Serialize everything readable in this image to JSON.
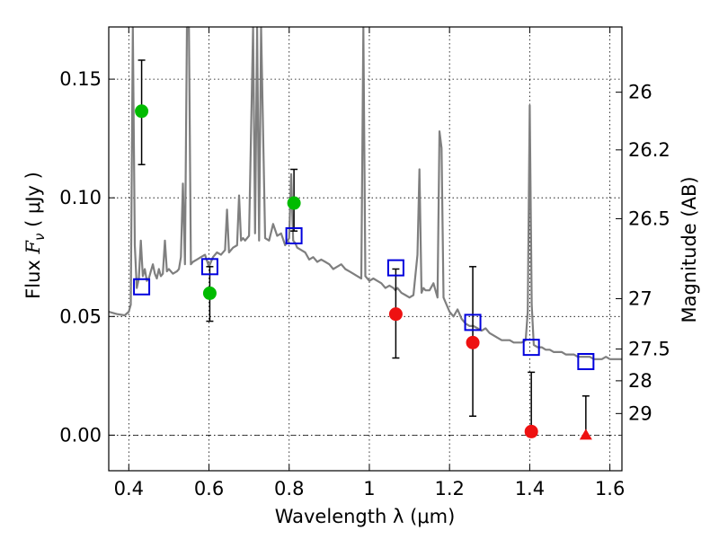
{
  "chart_data": {
    "type": "scatter",
    "xlabel": "Wavelength  λ (μm)",
    "ylabel": "Flux  F_ν  ( μJy )",
    "ylabel_parts": {
      "prefix": "Flux  ",
      "symbol": "F",
      "subscript": "ν",
      "suffix": "  ( μJy )"
    },
    "y2label": "Magnitude (AB)",
    "xlim": [
      0.35,
      1.63
    ],
    "ylim": [
      -0.015,
      0.172
    ],
    "x_ticks": [
      0.4,
      0.6,
      0.8,
      1.0,
      1.2,
      1.4,
      1.6
    ],
    "x_tick_labels": [
      "0.4",
      "0.6",
      "0.8",
      "1",
      "1.2",
      "1.4",
      "1.6"
    ],
    "y_ticks": [
      0.0,
      0.05,
      0.1,
      0.15
    ],
    "y_tick_labels": [
      "0.00",
      "0.05",
      "0.10",
      "0.15"
    ],
    "y2_ticks": [
      {
        "label": "26",
        "flux": 0.1445
      },
      {
        "label": "26.2",
        "flux": 0.1202
      },
      {
        "label": "26.5",
        "flux": 0.0912
      },
      {
        "label": "27",
        "flux": 0.0575
      },
      {
        "label": "27.5",
        "flux": 0.0363
      },
      {
        "label": "28",
        "flux": 0.0229
      },
      {
        "label": "29",
        "flux": 0.0091
      }
    ],
    "grid": true,
    "colors": {
      "green": "#00bb00",
      "red": "#ee1111",
      "model_box": "#0000dd",
      "spectrum": "#7f7f7f",
      "errorbar": "#000000"
    },
    "series": [
      {
        "name": "detections (green)",
        "marker": "circle",
        "color": "#00bb00",
        "x": [
          0.432,
          0.602,
          0.812
        ],
        "y": [
          0.1365,
          0.0598,
          0.0978
        ],
        "yerr_low": [
          0.0225,
          0.0118,
          0.0118
        ],
        "yerr_high": [
          0.0215,
          0.0112,
          0.0142
        ]
      },
      {
        "name": "detections (red)",
        "marker": "circle",
        "color": "#ee1111",
        "x": [
          1.066,
          1.258,
          1.404
        ],
        "y": [
          0.051,
          0.039,
          0.0015
        ],
        "yerr_low": [
          0.0185,
          0.031,
          0.0015
        ],
        "yerr_high": [
          0.019,
          0.032,
          0.025
        ]
      },
      {
        "name": "upper limit",
        "marker": "triangle",
        "color": "#ee1111",
        "x": [
          1.54
        ],
        "y": [
          0.0
        ],
        "yerr_low": [
          0.0
        ],
        "yerr_high": [
          0.0165
        ]
      },
      {
        "name": "model photometry",
        "marker": "open-square",
        "color": "#0000dd",
        "x": [
          0.432,
          0.602,
          0.812,
          1.066,
          1.258,
          1.404,
          1.54
        ],
        "y": [
          0.0625,
          0.071,
          0.084,
          0.0705,
          0.0475,
          0.037,
          0.031
        ]
      },
      {
        "name": "model spectrum",
        "marker": "line",
        "color": "#7f7f7f",
        "x": [
          0.35,
          0.37,
          0.39,
          0.4,
          0.405,
          0.41,
          0.415,
          0.42,
          0.425,
          0.43,
          0.435,
          0.44,
          0.445,
          0.45,
          0.455,
          0.46,
          0.465,
          0.47,
          0.475,
          0.48,
          0.485,
          0.49,
          0.495,
          0.5,
          0.51,
          0.52,
          0.525,
          0.53,
          0.535,
          0.54,
          0.545,
          0.55,
          0.555,
          0.56,
          0.57,
          0.58,
          0.59,
          0.6,
          0.61,
          0.62,
          0.63,
          0.64,
          0.645,
          0.65,
          0.66,
          0.67,
          0.675,
          0.68,
          0.685,
          0.69,
          0.7,
          0.71,
          0.715,
          0.72,
          0.725,
          0.73,
          0.74,
          0.75,
          0.76,
          0.77,
          0.78,
          0.79,
          0.8,
          0.805,
          0.81,
          0.815,
          0.82,
          0.83,
          0.84,
          0.85,
          0.86,
          0.87,
          0.88,
          0.89,
          0.9,
          0.91,
          0.92,
          0.93,
          0.94,
          0.95,
          0.96,
          0.97,
          0.98,
          0.985,
          0.99,
          0.995,
          1.0,
          1.01,
          1.02,
          1.03,
          1.04,
          1.05,
          1.06,
          1.065,
          1.07,
          1.075,
          1.08,
          1.09,
          1.1,
          1.11,
          1.12,
          1.125,
          1.13,
          1.135,
          1.14,
          1.15,
          1.16,
          1.17,
          1.175,
          1.18,
          1.185,
          1.19,
          1.2,
          1.21,
          1.22,
          1.23,
          1.24,
          1.25,
          1.26,
          1.27,
          1.28,
          1.29,
          1.3,
          1.31,
          1.32,
          1.33,
          1.34,
          1.35,
          1.36,
          1.37,
          1.38,
          1.39,
          1.395,
          1.4,
          1.405,
          1.41,
          1.42,
          1.43,
          1.44,
          1.45,
          1.46,
          1.47,
          1.48,
          1.49,
          1.5,
          1.51,
          1.52,
          1.53,
          1.54,
          1.55,
          1.56,
          1.57,
          1.58,
          1.59,
          1.6,
          1.61,
          1.62,
          1.63
        ],
        "y": [
          0.052,
          0.051,
          0.0505,
          0.052,
          0.055,
          0.18,
          0.08,
          0.062,
          0.066,
          0.082,
          0.067,
          0.07,
          0.065,
          0.066,
          0.069,
          0.072,
          0.068,
          0.066,
          0.07,
          0.067,
          0.068,
          0.082,
          0.069,
          0.07,
          0.068,
          0.069,
          0.07,
          0.075,
          0.106,
          0.072,
          0.18,
          0.18,
          0.072,
          0.073,
          0.074,
          0.075,
          0.076,
          0.071,
          0.075,
          0.077,
          0.076,
          0.078,
          0.095,
          0.077,
          0.079,
          0.08,
          0.101,
          0.082,
          0.083,
          0.082,
          0.084,
          0.18,
          0.085,
          0.18,
          0.082,
          0.18,
          0.083,
          0.082,
          0.089,
          0.084,
          0.085,
          0.08,
          0.083,
          0.11,
          0.082,
          0.081,
          0.079,
          0.078,
          0.077,
          0.074,
          0.075,
          0.073,
          0.074,
          0.073,
          0.072,
          0.07,
          0.071,
          0.072,
          0.07,
          0.069,
          0.068,
          0.067,
          0.066,
          0.18,
          0.067,
          0.066,
          0.065,
          0.066,
          0.065,
          0.064,
          0.062,
          0.063,
          0.062,
          0.061,
          0.062,
          0.061,
          0.06,
          0.059,
          0.058,
          0.059,
          0.076,
          0.112,
          0.06,
          0.062,
          0.061,
          0.061,
          0.064,
          0.058,
          0.128,
          0.121,
          0.058,
          0.056,
          0.052,
          0.05,
          0.053,
          0.049,
          0.047,
          0.046,
          0.046,
          0.045,
          0.044,
          0.045,
          0.043,
          0.042,
          0.041,
          0.04,
          0.04,
          0.04,
          0.039,
          0.039,
          0.039,
          0.04,
          0.052,
          0.139,
          0.055,
          0.038,
          0.037,
          0.037,
          0.036,
          0.036,
          0.035,
          0.035,
          0.035,
          0.034,
          0.034,
          0.034,
          0.033,
          0.033,
          0.033,
          0.033,
          0.032,
          0.032,
          0.032,
          0.033,
          0.032,
          0.032,
          0.032,
          0.032
        ]
      }
    ]
  }
}
